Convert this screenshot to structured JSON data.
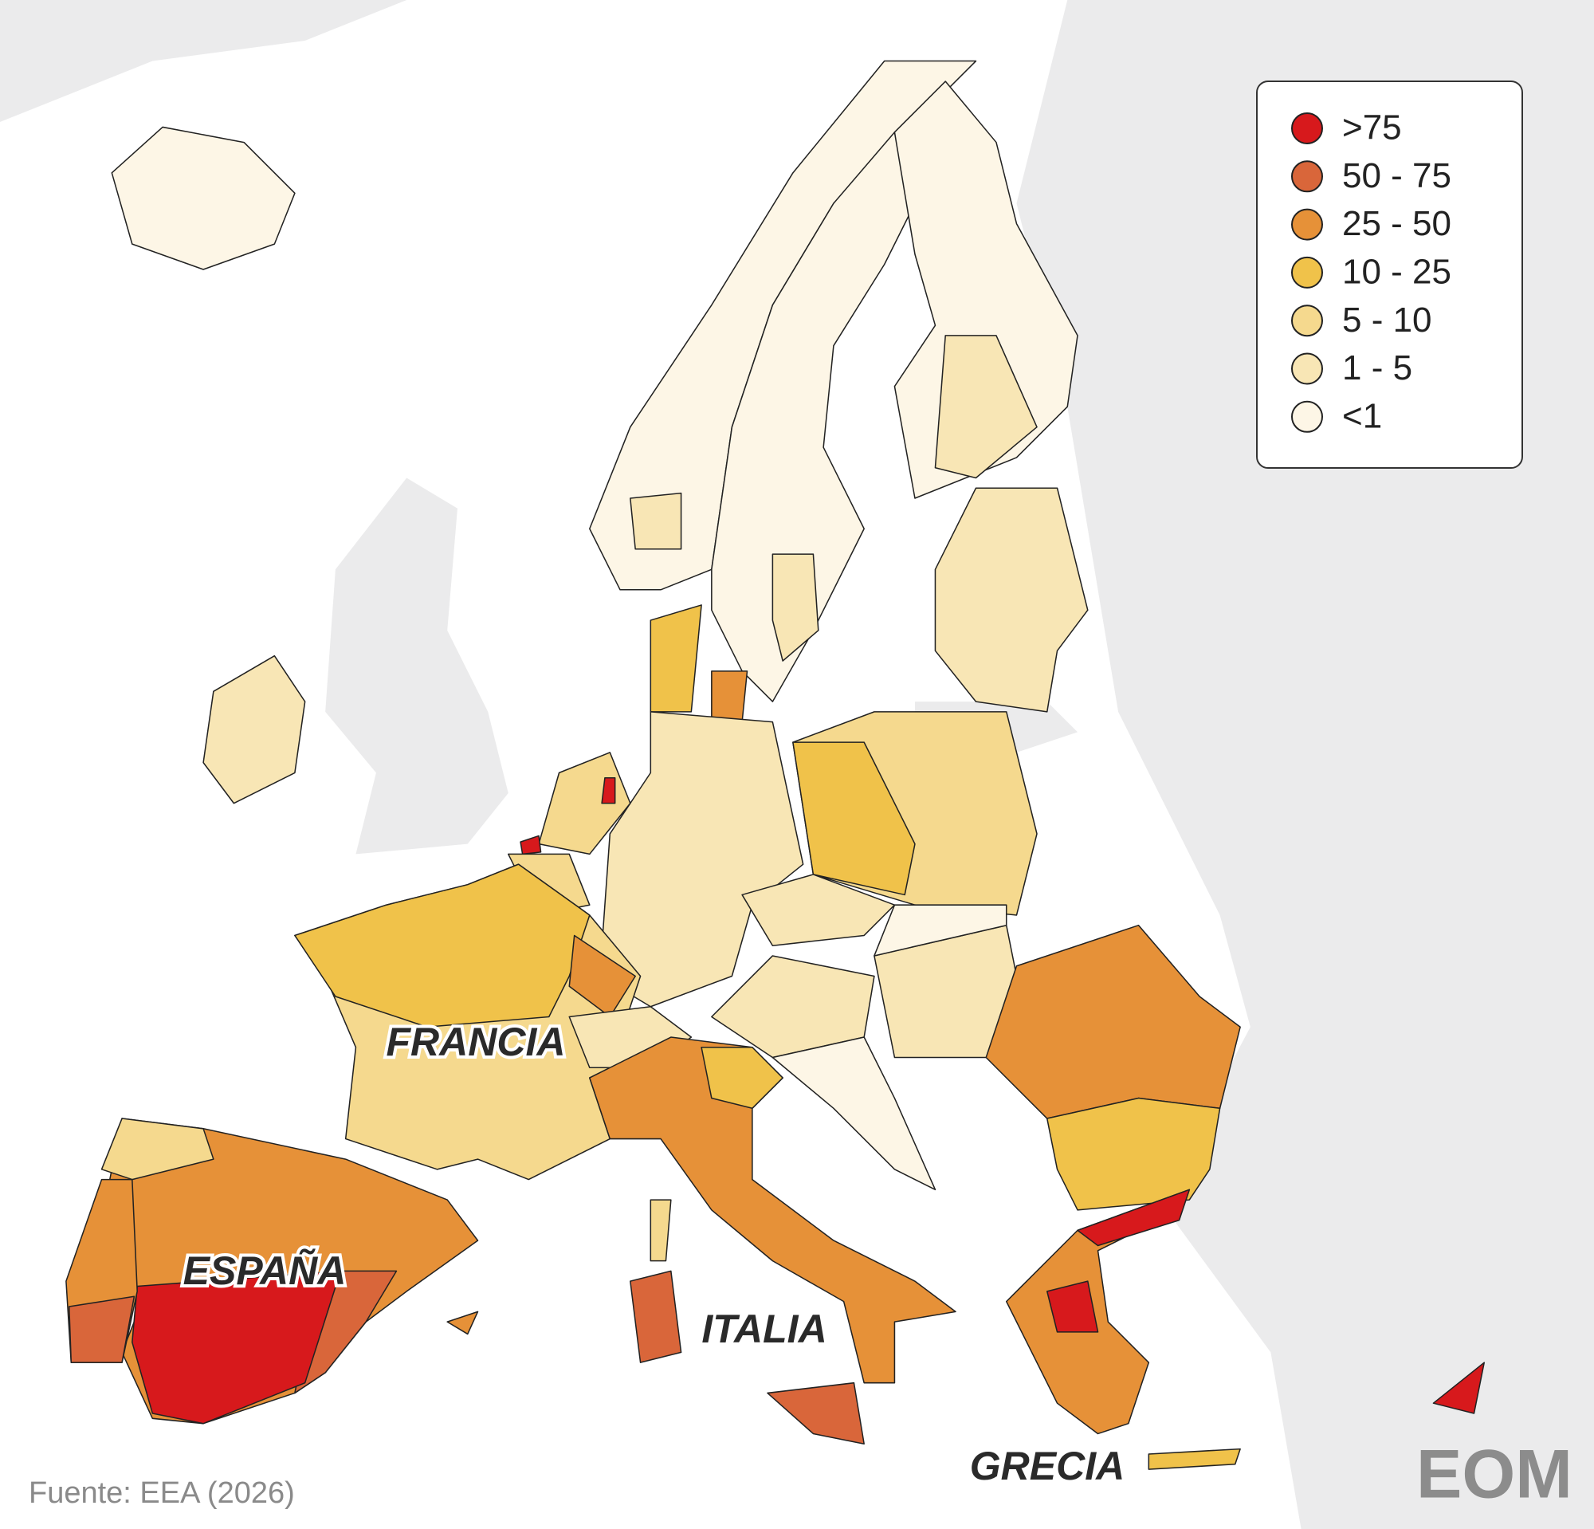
{
  "legend": {
    "items": [
      {
        "label": ">75",
        "color": "#d7191c"
      },
      {
        "label": "50 - 75",
        "color": "#d9663a"
      },
      {
        "label": "25 - 50",
        "color": "#e69138"
      },
      {
        "label": "10 - 25",
        "color": "#f0c24a"
      },
      {
        "label": "5 - 10",
        "color": "#f5d98e"
      },
      {
        "label": "1 - 5",
        "color": "#f8e6b5"
      },
      {
        "label": "<1",
        "color": "#fdf6e6"
      }
    ]
  },
  "labels": [
    "FRANCIA",
    "ESPAÑA",
    "ITALIA",
    "GRECIA"
  ],
  "source": "Fuente: EEA (2026)",
  "logo": "EOM"
}
